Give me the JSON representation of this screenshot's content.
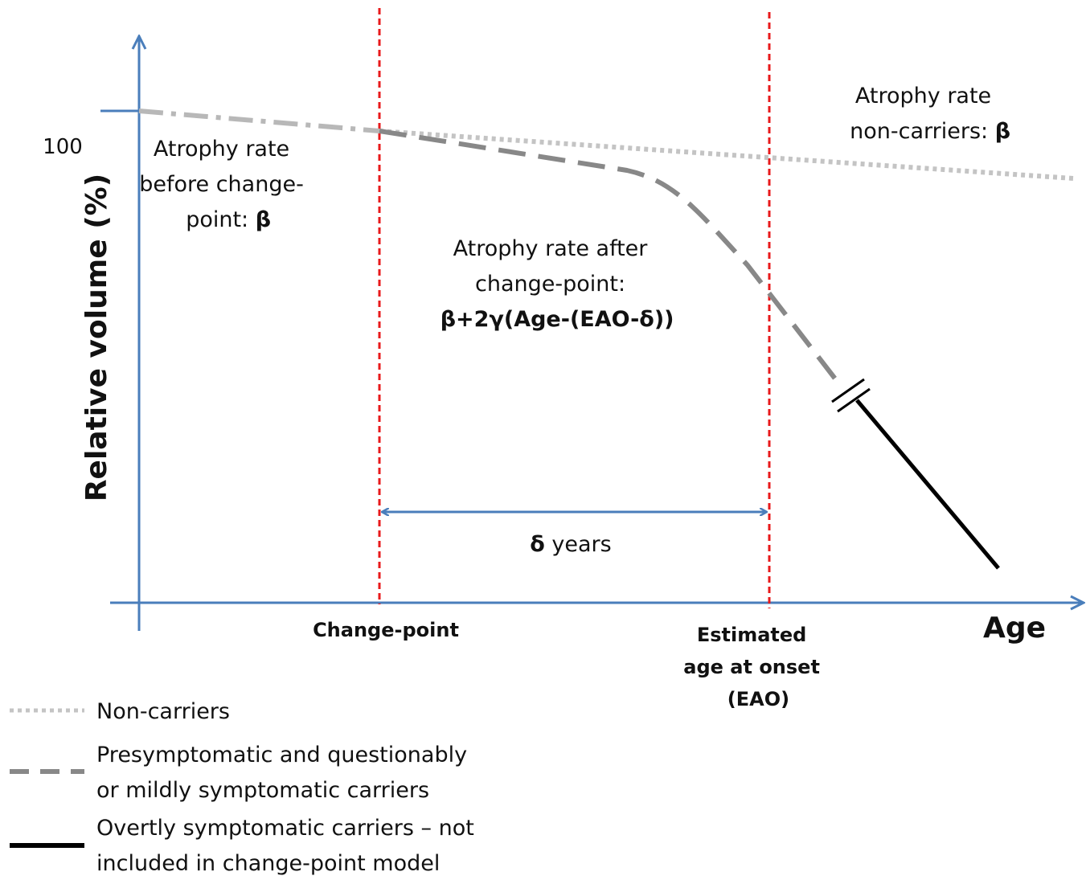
{
  "y_axis_label": "Relative volume (%)",
  "y_tick": "100",
  "x_axis_label": "Age",
  "before_annotation": {
    "lines": [
      "Atrophy rate",
      "before change-"
    ],
    "tail": "point: ",
    "symbol": "β"
  },
  "noncarrier_annotation": {
    "lines": [
      "Atrophy rate"
    ],
    "tail": "non-carriers: ",
    "symbol": "β"
  },
  "after_annotation": {
    "lines": [
      "Atrophy rate after",
      "change-point:"
    ],
    "formula": "β+2γ(Age-(EAO-δ))"
  },
  "interval": {
    "symbol": "δ",
    "text": " years"
  },
  "change_point_label": "Change-point",
  "eao_label": [
    "Estimated",
    "age at onset",
    "(EAO)"
  ],
  "legend": [
    {
      "lines": [
        "Non-carriers"
      ]
    },
    {
      "lines": [
        "Presymptomatic and questionably",
        "or mildly symptomatic carriers"
      ]
    },
    {
      "lines": [
        "Overtly symptomatic carriers – not",
        "included in change-point model"
      ]
    }
  ]
}
